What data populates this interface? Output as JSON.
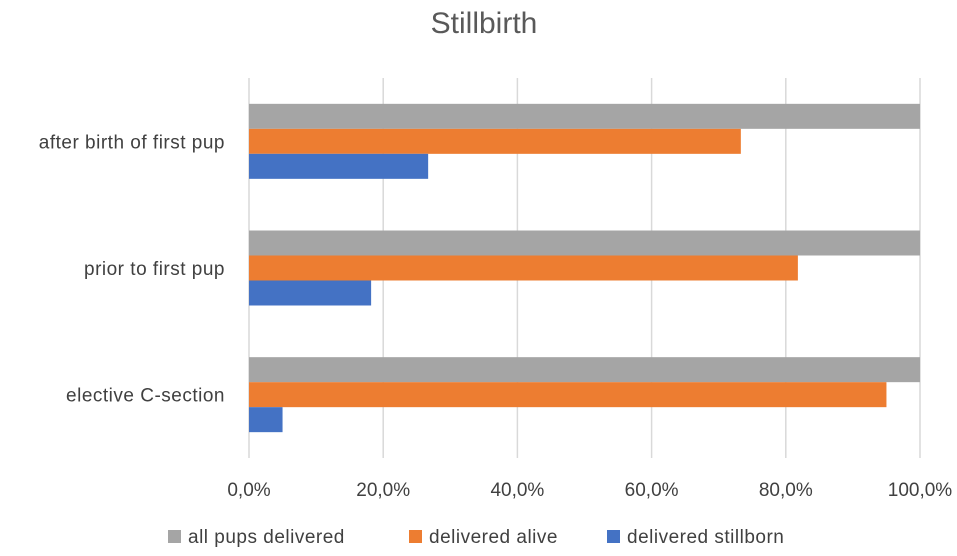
{
  "chart_data": {
    "type": "bar",
    "orientation": "horizontal",
    "title": "Stillbirth",
    "categories": [
      "after birth of first pup",
      "prior to first pup",
      "elective C-section"
    ],
    "series": [
      {
        "name": "all pups delivered",
        "color": "#a5a5a5",
        "values": [
          100.0,
          100.0,
          100.0
        ]
      },
      {
        "name": "delivered alive",
        "color": "#ed7d31",
        "values": [
          73.3,
          81.8,
          95.0
        ]
      },
      {
        "name": "delivered stillborn",
        "color": "#4472c4",
        "values": [
          26.7,
          18.2,
          5.0
        ]
      }
    ],
    "xaxis": {
      "ticks": [
        0,
        20,
        40,
        60,
        80,
        100
      ],
      "tick_labels": [
        "0,0%",
        "20,0%",
        "40,0%",
        "60,0%",
        "80,0%",
        "100,0%"
      ],
      "range": [
        0,
        100
      ],
      "grid": true
    },
    "xlabel": "",
    "ylabel": "",
    "legend_position": "bottom"
  }
}
